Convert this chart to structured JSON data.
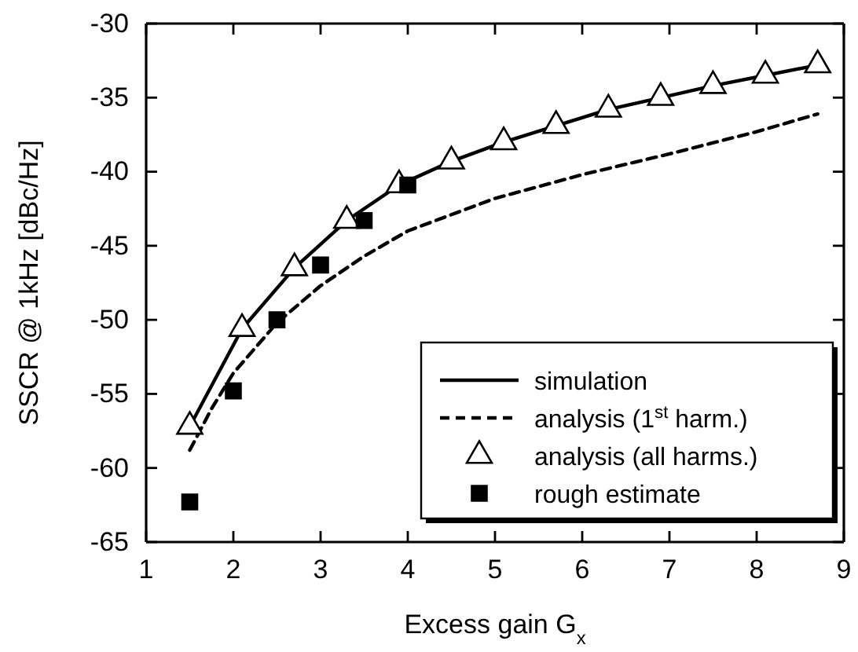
{
  "chart_data": {
    "type": "line",
    "xlabel": "Excess gain G$_{x}$",
    "ylabel": "SSCR @ 1kHz [dBc/Hz]",
    "xlim": [
      1,
      9
    ],
    "ylim": [
      -65,
      -30
    ],
    "xticks": [
      1,
      2,
      3,
      4,
      5,
      6,
      7,
      8,
      9
    ],
    "yticks": [
      -65,
      -60,
      -55,
      -50,
      -45,
      -40,
      -35,
      -30
    ],
    "grid": false,
    "legend": "bottom right",
    "series": [
      {
        "name": "simulation",
        "color": "#000000",
        "line_style": "solid",
        "marker": "none",
        "x": [
          1.5,
          2.1,
          2.7,
          3.3,
          3.9,
          4.5,
          5.1,
          5.7,
          6.3,
          6.9,
          7.5,
          8.1,
          8.7
        ],
        "values": [
          -57.2,
          -50.6,
          -46.5,
          -43.3,
          -40.9,
          -39.3,
          -38.0,
          -36.9,
          -35.8,
          -35.0,
          -34.2,
          -33.5,
          -32.8
        ]
      },
      {
        "name": "analysis (1$^{st}$ harm.)",
        "color": "#000000",
        "line_style": "dashed",
        "marker": "none",
        "x": [
          1.5,
          1.75,
          2,
          2.5,
          3,
          3.5,
          4,
          5,
          6,
          7,
          8,
          8.7
        ],
        "values": [
          -58.8,
          -56.0,
          -53.6,
          -50.2,
          -47.7,
          -45.7,
          -44.0,
          -41.8,
          -40.2,
          -38.8,
          -37.3,
          -36.1
        ]
      },
      {
        "name": "analysis (all harms.)",
        "type": "scatter",
        "color": "#000000",
        "marker": "triangle",
        "x": [
          1.5,
          2.1,
          2.7,
          3.3,
          3.9,
          4.5,
          5.1,
          5.7,
          6.3,
          6.9,
          7.5,
          8.1,
          8.7
        ],
        "values": [
          -57.2,
          -50.6,
          -46.5,
          -43.3,
          -40.9,
          -39.3,
          -38.0,
          -36.9,
          -35.8,
          -35.0,
          -34.2,
          -33.5,
          -32.8
        ]
      },
      {
        "name": "rough estimate",
        "type": "scatter",
        "color": "#000000",
        "marker": "square",
        "x": [
          1.5,
          2,
          2.5,
          3,
          3.5,
          4
        ],
        "values": [
          -62.3,
          -54.8,
          -50.0,
          -46.3,
          -43.3,
          -40.9
        ]
      }
    ]
  }
}
